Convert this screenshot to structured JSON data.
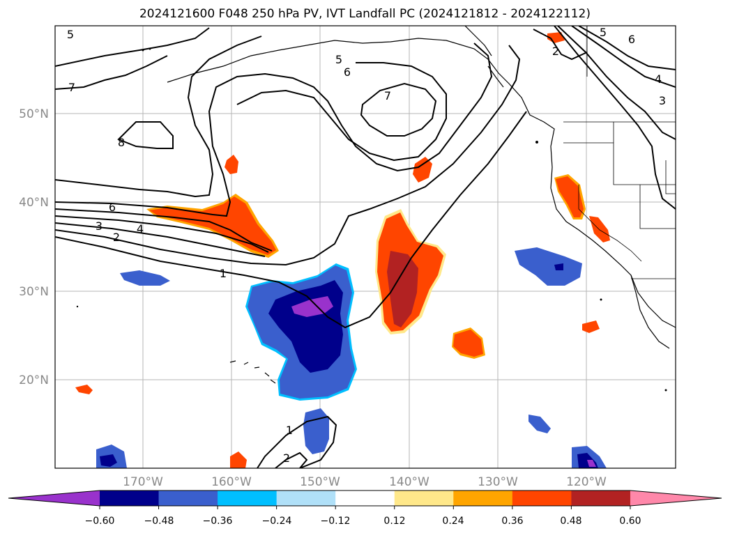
{
  "title": "2024121600 F048 250 hPa PV, IVT Landfall PC (2024121812 - 2024122112)",
  "map": {
    "lon_ticks": [
      "170°W",
      "160°W",
      "150°W",
      "140°W",
      "130°W",
      "120°W"
    ],
    "lat_ticks": [
      "50°N",
      "40°N",
      "30°N",
      "20°N"
    ],
    "grid": true,
    "pv_contour_labels": [
      "5",
      "7",
      "8",
      "6",
      "3",
      "4",
      "2",
      "1",
      "5",
      "6",
      "7",
      "5",
      "6",
      "2",
      "4",
      "3",
      "1",
      "2"
    ]
  },
  "colorbar": {
    "ticks": [
      "−0.60",
      "−0.48",
      "−0.36",
      "−0.24",
      "−0.12",
      "0.12",
      "0.24",
      "0.36",
      "0.48",
      "0.60"
    ],
    "colors": [
      "#9932cc",
      "#00008b",
      "#3a5fcd",
      "#00bfff",
      "#b0e0f8",
      "#ffffff",
      "#ffe88a",
      "#ffa500",
      "#ff4500",
      "#b22222",
      "#ff88aa"
    ],
    "extend": "both"
  }
}
